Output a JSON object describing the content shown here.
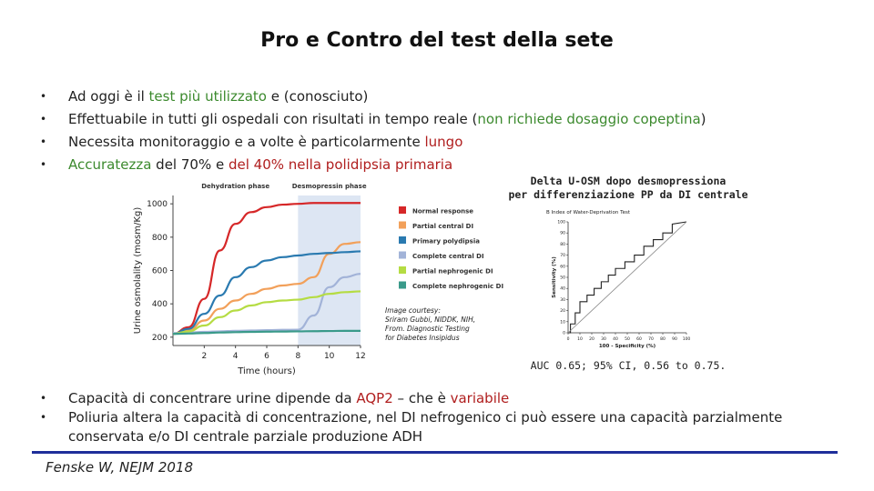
{
  "slide": {
    "title": "Pro e Contro del test della sete",
    "bullets_top": [
      {
        "segments": [
          {
            "text": "Ad oggi è il ",
            "color": ""
          },
          {
            "text": "test più utilizzato",
            "color": "green"
          },
          {
            "text": " e (conosciuto)",
            "color": ""
          }
        ]
      },
      {
        "segments": [
          {
            "text": "Effettuabile in tutti gli ospedali con risultati in tempo reale (",
            "color": ""
          },
          {
            "text": "non richiede dosaggio copeptina",
            "color": "green"
          },
          {
            "text": ")",
            "color": ""
          }
        ]
      },
      {
        "segments": [
          {
            "text": "Necessita monitoraggio e a volte è particolarmente ",
            "color": ""
          },
          {
            "text": "lungo",
            "color": "red"
          }
        ]
      },
      {
        "segments": [
          {
            "text": "Accuratezza",
            "color": "green"
          },
          {
            "text": " del 70% e ",
            "color": ""
          },
          {
            "text": "del 40% nella polidipsia primaria",
            "color": "red"
          }
        ]
      }
    ],
    "bullets_bottom": [
      {
        "segments": [
          {
            "text": "Capacità di concentrare urine dipende da ",
            "color": ""
          },
          {
            "text": "AQP2",
            "color": "red"
          },
          {
            "text": " – che è ",
            "color": ""
          },
          {
            "text": "variabile",
            "color": "red"
          }
        ]
      },
      {
        "segments": [
          {
            "text": "Poliuria altera la capacità di concentrazione, nel DI nefrogenico ci può essere una capacità parzialmente conservata e/o DI centrale parziale produzione ADH",
            "color": ""
          }
        ]
      }
    ],
    "citation": "Fenske W, NEJM 2018",
    "bullet_symbol": "•",
    "colors": {
      "green": "#3c8a2e",
      "red": "#b01e1e",
      "rule": "#1e2e9a"
    }
  },
  "image_courtesy": [
    "Image courtesy:",
    "Sriram Gubbi, NIDDK, NIH,",
    "From. Diagnostic Testing",
    "for Diabetes Insipidus"
  ],
  "roc_caption": [
    "Delta U-OSM dopo desmopressiona",
    "per differenziazione PP da DI centrale"
  ],
  "auc_text": "AUC 0.65; 95% CI, 0.56 to 0.75.",
  "chart_data": [
    {
      "type": "line",
      "title": "",
      "xlabel": "Time (hours)",
      "ylabel": "Urine osmolality (mosm/Kg)",
      "xlim": [
        0,
        12
      ],
      "ylim": [
        150,
        1050
      ],
      "x_ticks": [
        2,
        4,
        6,
        8,
        10,
        12
      ],
      "y_ticks": [
        200,
        400,
        600,
        800,
        1000
      ],
      "phases": [
        {
          "label": "Dehydration phase",
          "x_range": [
            0,
            8
          ],
          "color": "#ffffff"
        },
        {
          "label": "Desmopressin phase",
          "x_range": [
            8,
            12
          ],
          "color": "#dde6f3"
        }
      ],
      "legend_position": "right",
      "series": [
        {
          "name": "Normal response",
          "color": "#d62728",
          "x": [
            0,
            1,
            2,
            3,
            4,
            5,
            6,
            7,
            8,
            9,
            10,
            11,
            12
          ],
          "values": [
            220,
            260,
            430,
            720,
            880,
            950,
            980,
            995,
            1000,
            1005,
            1005,
            1005,
            1005
          ]
        },
        {
          "name": "Partial central DI",
          "color": "#f2a05a",
          "x": [
            0,
            1,
            2,
            3,
            4,
            5,
            6,
            7,
            8,
            9,
            10,
            11,
            12
          ],
          "values": [
            220,
            240,
            300,
            370,
            420,
            460,
            490,
            510,
            520,
            560,
            700,
            760,
            770
          ]
        },
        {
          "name": "Primary polydipsia",
          "color": "#2a7ab0",
          "x": [
            0,
            1,
            2,
            3,
            4,
            5,
            6,
            7,
            8,
            9,
            10,
            11,
            12
          ],
          "values": [
            220,
            250,
            340,
            450,
            560,
            620,
            660,
            680,
            690,
            700,
            705,
            710,
            715
          ]
        },
        {
          "name": "Complete central DI",
          "color": "#a2b3d8",
          "x": [
            0,
            1,
            2,
            3,
            4,
            5,
            6,
            7,
            8,
            9,
            10,
            11,
            12
          ],
          "values": [
            225,
            228,
            232,
            235,
            238,
            240,
            242,
            244,
            245,
            330,
            500,
            560,
            580
          ]
        },
        {
          "name": "Partial nephrogenic DI",
          "color": "#b5dc43",
          "x": [
            0,
            1,
            2,
            3,
            4,
            5,
            6,
            7,
            8,
            9,
            10,
            11,
            12
          ],
          "values": [
            220,
            235,
            270,
            320,
            360,
            390,
            410,
            420,
            425,
            440,
            460,
            470,
            475
          ]
        },
        {
          "name": "Complete nephrogenic DI",
          "color": "#3a9a8a",
          "x": [
            0,
            1,
            2,
            3,
            4,
            5,
            6,
            7,
            8,
            9,
            10,
            11,
            12
          ],
          "values": [
            220,
            222,
            225,
            228,
            230,
            232,
            233,
            234,
            235,
            236,
            237,
            238,
            238
          ]
        }
      ]
    },
    {
      "type": "line",
      "title": "B  Index of Water-Deprivation Test",
      "xlabel": "100 - Specificity (%)",
      "ylabel": "Sensitivity (%)",
      "xlim": [
        0,
        100
      ],
      "ylim": [
        0,
        100
      ],
      "x_ticks": [
        0,
        10,
        20,
        30,
        40,
        50,
        60,
        70,
        80,
        90,
        100
      ],
      "y_ticks": [
        0,
        10,
        20,
        30,
        40,
        50,
        60,
        70,
        80,
        90,
        100
      ],
      "series": [
        {
          "name": "",
          "color": "#222222",
          "x": [
            0,
            2,
            2,
            6,
            6,
            10,
            10,
            16,
            16,
            22,
            22,
            28,
            28,
            34,
            34,
            40,
            40,
            48,
            48,
            56,
            56,
            64,
            64,
            72,
            72,
            80,
            80,
            88,
            88,
            100
          ],
          "values": [
            0,
            0,
            8,
            8,
            18,
            18,
            28,
            28,
            34,
            34,
            40,
            40,
            46,
            46,
            52,
            52,
            58,
            58,
            64,
            64,
            70,
            70,
            78,
            78,
            84,
            84,
            90,
            90,
            98,
            100
          ]
        },
        {
          "name": "",
          "color": "#888888",
          "x": [
            0,
            100
          ],
          "values": [
            0,
            100
          ]
        }
      ]
    }
  ]
}
